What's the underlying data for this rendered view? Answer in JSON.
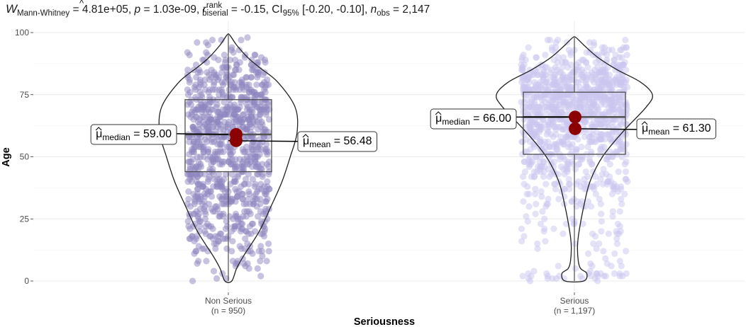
{
  "chart_data": {
    "type": "violin-box-scatter",
    "subtitle": {
      "W_label": "W",
      "W_sub": "Mann-Whitney",
      "W_value": " = 4.81e+05, ",
      "p_label": "p",
      "p_value": " = 1.03e-09, ",
      "r_label": "r",
      "r_hat": "^",
      "r_sup": "rank",
      "r_sub": "biserial",
      "r_value": " = -0.15, CI",
      "ci_sub": "95%",
      "ci_value": " [-0.20, -0.10], ",
      "n_label": "n",
      "n_sub": "obs",
      "n_value": " = 2,147"
    },
    "xlabel": "Seriousness",
    "ylabel": "Age",
    "ylim": [
      0,
      100
    ],
    "yticks": [
      0,
      25,
      50,
      75,
      100
    ],
    "grid": true,
    "groups": [
      {
        "name": "Non Serious",
        "n_label": "(n = 950)",
        "color": "#8e86bf",
        "point_count": 950,
        "box": {
          "q1": 44,
          "median": 59,
          "q3": 73,
          "whisker_low": 0,
          "whisker_high": 99
        },
        "mean": 56.48,
        "violin": [
          [
            0,
            0.05
          ],
          [
            5,
            0.12
          ],
          [
            10,
            0.22
          ],
          [
            20,
            0.45
          ],
          [
            30,
            0.62
          ],
          [
            40,
            0.78
          ],
          [
            50,
            0.9
          ],
          [
            60,
            1.0
          ],
          [
            70,
            0.97
          ],
          [
            80,
            0.72
          ],
          [
            86,
            0.45
          ],
          [
            90,
            0.28
          ],
          [
            95,
            0.12
          ],
          [
            99,
            0.02
          ]
        ],
        "median_label": {
          "mu": "μ",
          "sub": "median",
          "text": " = 59.00"
        },
        "mean_label": {
          "mu": "μ",
          "sub": "mean",
          "text": " = 56.48"
        }
      },
      {
        "name": "Serious",
        "n_label": "(n = 1,197)",
        "color": "#c9c6f0",
        "point_count": 1197,
        "box": {
          "q1": 51,
          "median": 66,
          "q3": 76,
          "whisker_low": 0,
          "whisker_high": 98
        },
        "mean": 61.3,
        "violin": [
          [
            0,
            0.12
          ],
          [
            3,
            0.16
          ],
          [
            5,
            0.08
          ],
          [
            8,
            0.05
          ],
          [
            14,
            0.04
          ],
          [
            20,
            0.06
          ],
          [
            30,
            0.12
          ],
          [
            40,
            0.2
          ],
          [
            50,
            0.36
          ],
          [
            60,
            0.62
          ],
          [
            70,
            0.92
          ],
          [
            75,
            1.0
          ],
          [
            80,
            0.85
          ],
          [
            85,
            0.55
          ],
          [
            90,
            0.3
          ],
          [
            95,
            0.12
          ],
          [
            98,
            0.02
          ]
        ],
        "median_label": {
          "mu": "μ",
          "sub": "median",
          "text": " = 66.00"
        },
        "mean_label": {
          "mu": "μ",
          "sub": "mean",
          "text": " = 61.30"
        }
      }
    ],
    "marker_color": "#8b0000"
  }
}
